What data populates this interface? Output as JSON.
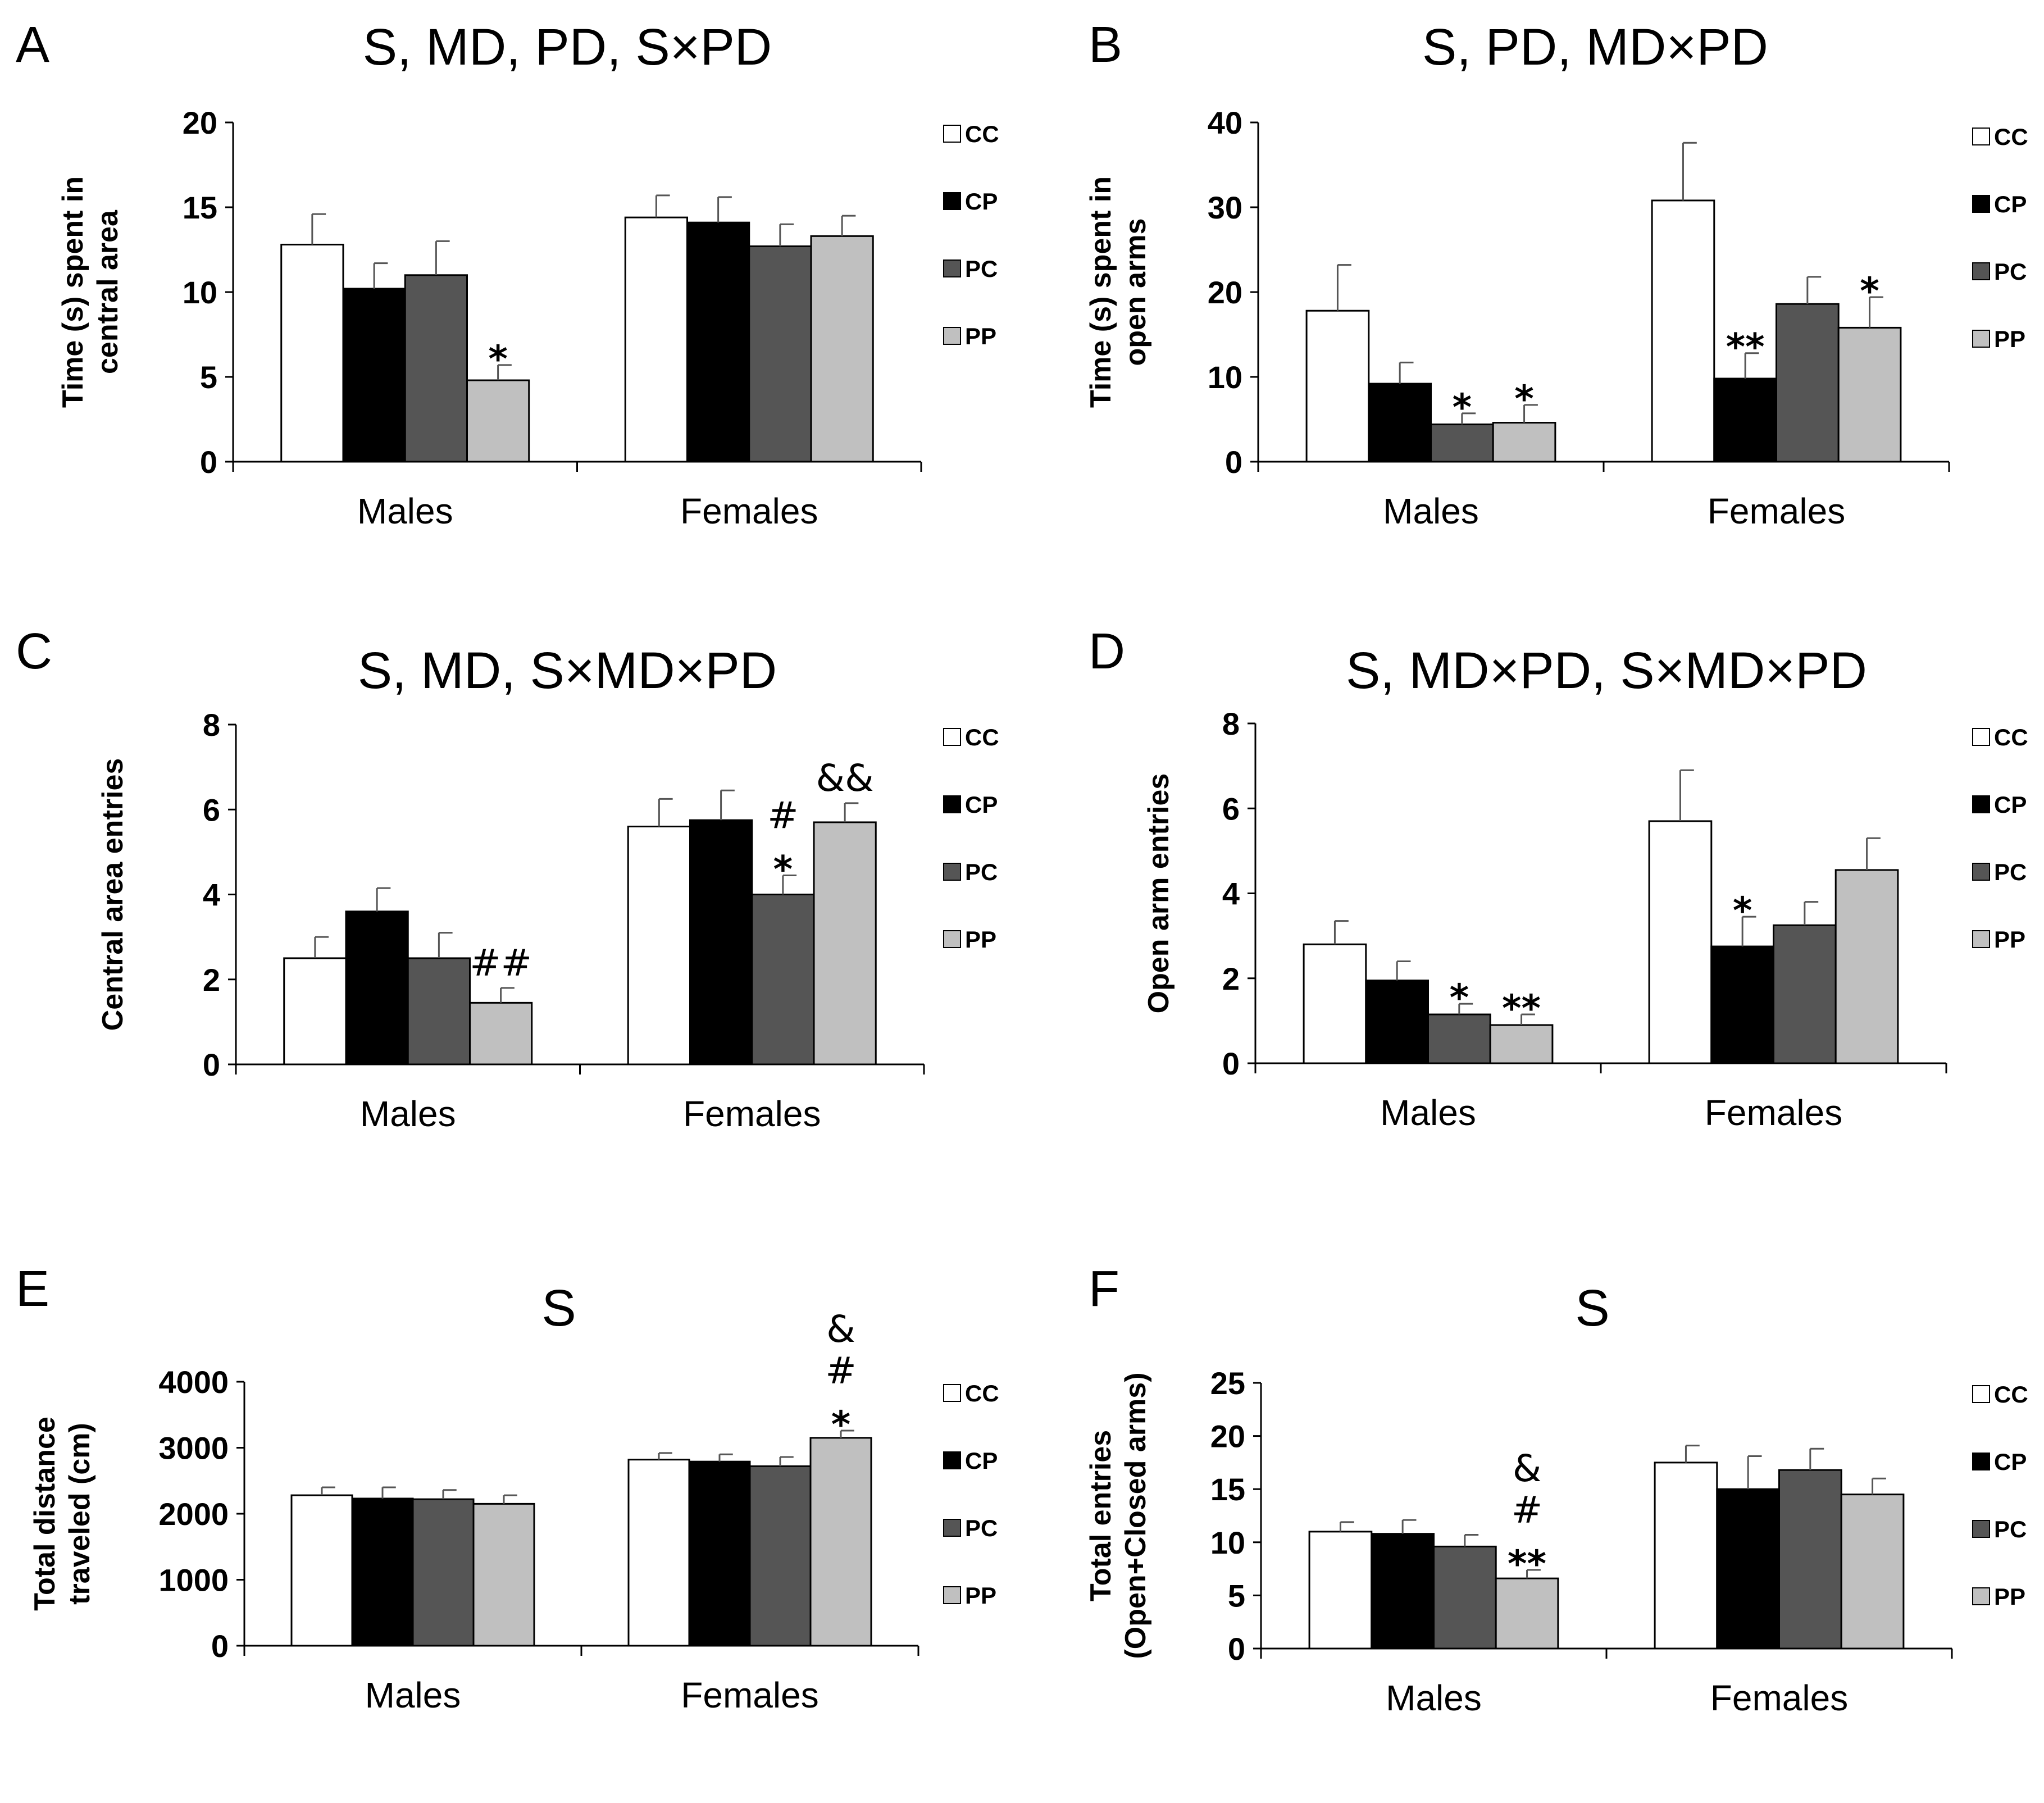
{
  "figure": {
    "legend": [
      "CC",
      "CP",
      "PC",
      "PP"
    ],
    "series_colors": [
      "#ffffff",
      "#000000",
      "#555555",
      "#c0c0c0"
    ]
  },
  "chart_data": [
    {
      "panel": "A",
      "type": "bar",
      "title": "S, MD, PD, S×PD",
      "ylabel_lines": [
        "Time (s) spent in",
        "central area"
      ],
      "ylim": [
        0,
        20
      ],
      "yticks": [
        0,
        5,
        10,
        15,
        20
      ],
      "categories": [
        "Males",
        "Females"
      ],
      "series": [
        {
          "name": "CC",
          "values": [
            12.8,
            14.4
          ],
          "errors": [
            1.8,
            1.3
          ]
        },
        {
          "name": "CP",
          "values": [
            10.2,
            14.1
          ],
          "errors": [
            1.5,
            1.5
          ]
        },
        {
          "name": "PC",
          "values": [
            11.0,
            12.7
          ],
          "errors": [
            2.0,
            1.3
          ]
        },
        {
          "name": "PP",
          "values": [
            4.8,
            13.3
          ],
          "errors": [
            0.9,
            1.2
          ]
        }
      ],
      "annotations": [
        {
          "series": 3,
          "category": 0,
          "lines": [
            "*"
          ]
        }
      ]
    },
    {
      "panel": "B",
      "type": "bar",
      "title": "S, PD, MD×PD",
      "ylabel_lines": [
        "Time (s) spent in",
        "open arms"
      ],
      "ylim": [
        0,
        40
      ],
      "yticks": [
        0,
        10,
        20,
        30,
        40
      ],
      "categories": [
        "Males",
        "Females"
      ],
      "series": [
        {
          "name": "CC",
          "values": [
            17.8,
            30.8
          ],
          "errors": [
            5.4,
            6.8
          ]
        },
        {
          "name": "CP",
          "values": [
            9.2,
            9.8
          ],
          "errors": [
            2.5,
            3.0
          ]
        },
        {
          "name": "PC",
          "values": [
            4.4,
            18.6
          ],
          "errors": [
            1.3,
            3.2
          ]
        },
        {
          "name": "PP",
          "values": [
            4.6,
            15.8
          ],
          "errors": [
            2.1,
            3.6
          ]
        }
      ],
      "annotations": [
        {
          "series": 2,
          "category": 0,
          "lines": [
            "*"
          ]
        },
        {
          "series": 3,
          "category": 0,
          "lines": [
            "*"
          ]
        },
        {
          "series": 1,
          "category": 1,
          "lines": [
            "**"
          ]
        },
        {
          "series": 3,
          "category": 1,
          "lines": [
            "*"
          ]
        }
      ]
    },
    {
      "panel": "C",
      "type": "bar",
      "title": "S, MD, S×MD×PD",
      "ylabel_lines": [
        "Central area entries"
      ],
      "ylim": [
        0,
        8
      ],
      "yticks": [
        0,
        2,
        4,
        6,
        8
      ],
      "categories": [
        "Males",
        "Females"
      ],
      "series": [
        {
          "name": "CC",
          "values": [
            2.5,
            5.6
          ],
          "errors": [
            0.5,
            0.65
          ]
        },
        {
          "name": "CP",
          "values": [
            3.6,
            5.75
          ],
          "errors": [
            0.55,
            0.7
          ]
        },
        {
          "name": "PC",
          "values": [
            2.5,
            4.0
          ],
          "errors": [
            0.6,
            0.45
          ]
        },
        {
          "name": "PP",
          "values": [
            1.45,
            5.7
          ],
          "errors": [
            0.35,
            0.45
          ]
        }
      ],
      "annotations": [
        {
          "series": 3,
          "category": 0,
          "lines": [
            "##"
          ]
        },
        {
          "series": 2,
          "category": 1,
          "lines": [
            "#",
            "*"
          ]
        },
        {
          "series": 3,
          "category": 1,
          "lines": [
            "&&"
          ]
        }
      ]
    },
    {
      "panel": "D",
      "type": "bar",
      "title": "S, MD×PD, S×MD×PD",
      "ylabel_lines": [
        "Open arm entries"
      ],
      "ylim": [
        0,
        8
      ],
      "yticks": [
        0,
        2,
        4,
        6,
        8
      ],
      "categories": [
        "Males",
        "Females"
      ],
      "series": [
        {
          "name": "CC",
          "values": [
            2.8,
            5.7
          ],
          "errors": [
            0.55,
            1.2
          ]
        },
        {
          "name": "CP",
          "values": [
            1.95,
            2.75
          ],
          "errors": [
            0.45,
            0.7
          ]
        },
        {
          "name": "PC",
          "values": [
            1.15,
            3.25
          ],
          "errors": [
            0.25,
            0.55
          ]
        },
        {
          "name": "PP",
          "values": [
            0.9,
            4.55
          ],
          "errors": [
            0.25,
            0.75
          ]
        }
      ],
      "annotations": [
        {
          "series": 2,
          "category": 0,
          "lines": [
            "*"
          ]
        },
        {
          "series": 3,
          "category": 0,
          "lines": [
            "**"
          ]
        },
        {
          "series": 1,
          "category": 1,
          "lines": [
            "*"
          ]
        }
      ]
    },
    {
      "panel": "E",
      "type": "bar",
      "title": "S",
      "ylabel_lines": [
        "Total distance",
        "traveled (cm)"
      ],
      "ylim": [
        0,
        4000
      ],
      "yticks": [
        0,
        1000,
        2000,
        3000,
        4000
      ],
      "categories": [
        "Males",
        "Females"
      ],
      "series": [
        {
          "name": "CC",
          "values": [
            2280,
            2820
          ],
          "errors": [
            120,
            100
          ]
        },
        {
          "name": "CP",
          "values": [
            2230,
            2790
          ],
          "errors": [
            170,
            110
          ]
        },
        {
          "name": "PC",
          "values": [
            2220,
            2720
          ],
          "errors": [
            140,
            140
          ]
        },
        {
          "name": "PP",
          "values": [
            2150,
            3150
          ],
          "errors": [
            130,
            110
          ]
        }
      ],
      "annotations": [
        {
          "series": 3,
          "category": 1,
          "lines": [
            "&",
            "#",
            "*"
          ]
        }
      ]
    },
    {
      "panel": "F",
      "type": "bar",
      "title": "S",
      "ylabel_lines": [
        "Total entries",
        "(Open+Closed arms)"
      ],
      "ylim": [
        0,
        25
      ],
      "yticks": [
        0,
        5,
        10,
        15,
        20,
        25
      ],
      "categories": [
        "Males",
        "Females"
      ],
      "series": [
        {
          "name": "CC",
          "values": [
            11.0,
            17.5
          ],
          "errors": [
            0.9,
            1.6
          ]
        },
        {
          "name": "CP",
          "values": [
            10.8,
            15.0
          ],
          "errors": [
            1.3,
            3.1
          ]
        },
        {
          "name": "PC",
          "values": [
            9.6,
            16.8
          ],
          "errors": [
            1.1,
            2.0
          ]
        },
        {
          "name": "PP",
          "values": [
            6.6,
            14.5
          ],
          "errors": [
            0.8,
            1.5
          ]
        }
      ],
      "annotations": [
        {
          "series": 3,
          "category": 0,
          "lines": [
            "&",
            "#",
            "**"
          ]
        }
      ]
    }
  ]
}
